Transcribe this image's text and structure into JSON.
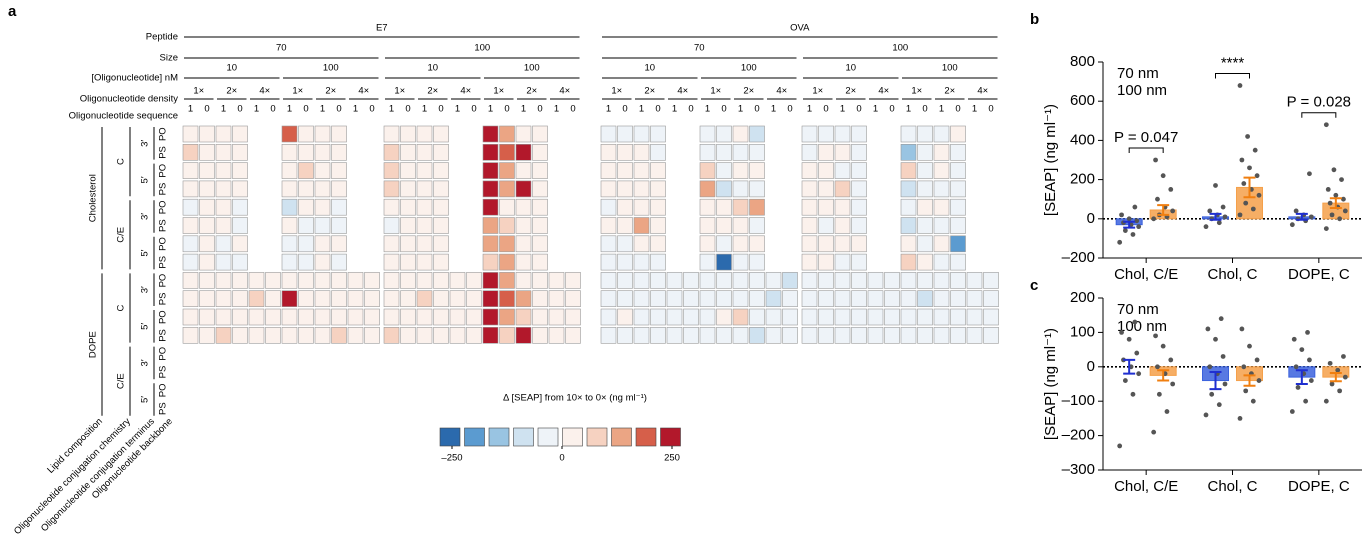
{
  "panel_letters": [
    "a",
    "b",
    "c"
  ],
  "chart_data": [
    {
      "type": "heatmap",
      "column_headers": [
        {
          "name": "Peptide",
          "labels": [
            "E7",
            "OVA"
          ]
        },
        {
          "name": "Size",
          "labels": [
            "70",
            "100"
          ]
        },
        {
          "name": "[Oligonucleotide] nM",
          "labels": [
            "10",
            "100"
          ]
        },
        {
          "name": "Oligonucleotide density",
          "labels": [
            "1×",
            "2×",
            "4×"
          ]
        },
        {
          "name": "Oligonucleotide sequence",
          "labels": [
            "1",
            "0"
          ]
        }
      ],
      "row_headers": [
        {
          "name": "Lipid composition",
          "labels": [
            "Cholesterol",
            "DOPE"
          ]
        },
        {
          "name": "Oligonucleotide conjugation chemistry",
          "labels": [
            "C",
            "C/E"
          ]
        },
        {
          "name": "Oligonucleotide conjugation terminus",
          "labels": [
            "3′",
            "5′"
          ]
        },
        {
          "name": "Oligonucleotide backbone",
          "labels": [
            "PO",
            "PS"
          ]
        }
      ],
      "values": [
        [
          10,
          10,
          10,
          20,
          null,
          null,
          150,
          20,
          10,
          10,
          null,
          null,
          10,
          20,
          40,
          10,
          null,
          null,
          250,
          100,
          40,
          10,
          null,
          null,
          -20,
          -20,
          -20,
          -10,
          null,
          null,
          -30,
          -10,
          20,
          -100,
          null,
          null,
          -10,
          -10,
          -20,
          -10,
          null,
          null,
          -40,
          -10,
          -10,
          10,
          null,
          null
        ],
        [
          60,
          10,
          10,
          20,
          null,
          null,
          30,
          10,
          10,
          10,
          null,
          null,
          60,
          20,
          40,
          10,
          null,
          null,
          250,
          150,
          250,
          30,
          null,
          null,
          10,
          10,
          10,
          -10,
          null,
          null,
          -40,
          -20,
          -10,
          -30,
          null,
          null,
          -10,
          10,
          20,
          -10,
          null,
          null,
          -120,
          -10,
          10,
          -40,
          null,
          null
        ],
        [
          20,
          20,
          30,
          10,
          null,
          null,
          20,
          50,
          10,
          10,
          null,
          null,
          80,
          40,
          10,
          20,
          null,
          null,
          250,
          100,
          20,
          30,
          null,
          null,
          20,
          10,
          10,
          20,
          null,
          null,
          60,
          -20,
          10,
          10,
          null,
          null,
          10,
          20,
          -10,
          -10,
          null,
          null,
          70,
          -10,
          20,
          -40,
          null,
          null
        ],
        [
          20,
          10,
          30,
          10,
          null,
          null,
          10,
          20,
          10,
          10,
          null,
          null,
          60,
          20,
          40,
          30,
          null,
          null,
          200,
          100,
          250,
          10,
          null,
          null,
          40,
          20,
          10,
          10,
          null,
          null,
          120,
          -60,
          -50,
          -30,
          null,
          null,
          40,
          20,
          50,
          -10,
          null,
          null,
          -60,
          -20,
          -20,
          -40,
          null,
          null
        ],
        [
          -10,
          10,
          20,
          -10,
          null,
          null,
          -100,
          10,
          10,
          -30,
          null,
          null,
          10,
          10,
          20,
          10,
          null,
          null,
          250,
          20,
          10,
          20,
          null,
          null,
          -10,
          20,
          10,
          10,
          null,
          null,
          20,
          40,
          60,
          100,
          null,
          null,
          10,
          20,
          20,
          -10,
          null,
          null,
          -20,
          10,
          20,
          -40,
          null,
          null
        ],
        [
          20,
          10,
          30,
          -10,
          null,
          null,
          10,
          -20,
          -10,
          -10,
          null,
          null,
          -20,
          20,
          30,
          10,
          null,
          null,
          100,
          50,
          20,
          20,
          null,
          null,
          10,
          20,
          100,
          10,
          null,
          null,
          10,
          20,
          10,
          -10,
          null,
          null,
          10,
          -10,
          10,
          -10,
          null,
          null,
          -80,
          -20,
          -10,
          -30,
          null,
          null
        ],
        [
          -10,
          10,
          -10,
          40,
          null,
          null,
          -20,
          -10,
          10,
          10,
          null,
          null,
          10,
          20,
          30,
          20,
          null,
          null,
          120,
          100,
          40,
          20,
          null,
          null,
          -10,
          -10,
          20,
          10,
          null,
          null,
          10,
          -10,
          30,
          10,
          null,
          null,
          10,
          10,
          10,
          10,
          null,
          null,
          10,
          -10,
          20,
          -180,
          null,
          null
        ],
        [
          -10,
          10,
          -10,
          -10,
          null,
          null,
          -40,
          -20,
          40,
          -10,
          null,
          null,
          10,
          20,
          20,
          10,
          null,
          null,
          80,
          100,
          20,
          10,
          null,
          null,
          -10,
          -10,
          -10,
          -20,
          null,
          null,
          -20,
          -220,
          -20,
          -10,
          null,
          null,
          10,
          10,
          -10,
          -10,
          null,
          null,
          70,
          10,
          -10,
          -10,
          null,
          null
        ],
        [
          10,
          10,
          20,
          10,
          10,
          10,
          10,
          10,
          20,
          10,
          10,
          10,
          10,
          20,
          30,
          20,
          10,
          10,
          250,
          100,
          40,
          20,
          10,
          10,
          -30,
          -20,
          -20,
          -30,
          -40,
          -30,
          -20,
          -30,
          -20,
          -30,
          -40,
          -60,
          -20,
          -20,
          -30,
          -30,
          -30,
          -30,
          -30,
          -40,
          -30,
          -20,
          -30,
          -30
        ],
        [
          10,
          20,
          20,
          10,
          80,
          20,
          250,
          10,
          20,
          30,
          10,
          10,
          10,
          20,
          60,
          20,
          10,
          10,
          200,
          150,
          100,
          20,
          20,
          20,
          -20,
          -10,
          -10,
          -20,
          -20,
          -30,
          -20,
          -10,
          -20,
          -40,
          -80,
          -40,
          -10,
          -10,
          -10,
          -20,
          -20,
          -20,
          -30,
          -70,
          -20,
          -20,
          -20,
          -30
        ],
        [
          20,
          20,
          20,
          10,
          10,
          10,
          20,
          30,
          20,
          10,
          10,
          20,
          40,
          30,
          30,
          20,
          20,
          20,
          250,
          100,
          60,
          30,
          20,
          20,
          -20,
          30,
          -20,
          -10,
          -10,
          -20,
          -20,
          20,
          60,
          -30,
          -20,
          -30,
          -10,
          -10,
          -20,
          -10,
          -20,
          -20,
          -20,
          -40,
          -20,
          -20,
          -30,
          -30
        ],
        [
          30,
          20,
          90,
          20,
          10,
          10,
          10,
          30,
          20,
          70,
          20,
          10,
          60,
          30,
          30,
          20,
          20,
          20,
          250,
          80,
          250,
          30,
          20,
          20,
          -10,
          -10,
          -10,
          -20,
          -20,
          -30,
          -20,
          -10,
          -30,
          -60,
          -50,
          -20,
          -20,
          -10,
          -10,
          -10,
          -20,
          -20,
          -20,
          -40,
          -20,
          -20,
          -30,
          -30
        ]
      ],
      "colors": [
        "#2b6aad",
        "#5b9bd0",
        "#99c4e2",
        "#cfe2f0",
        "#eef3f8",
        "#fbf1ec",
        "#f6d2c1",
        "#eba584",
        "#d65f4a",
        "#b2182b"
      ],
      "zlim": [
        -250,
        250
      ],
      "colorbar_ticks": [
        {
          "value": -250,
          "label": "–250"
        },
        0,
        250
      ],
      "colorbar_label": "Δ [SEAP] from 10× to 0× (ng ml⁻¹)"
    },
    {
      "type": "bar",
      "categories": [
        "Chol, C/E",
        "Chol, C",
        "DOPE, C"
      ],
      "ylabel": "[SEAP] (ng ml⁻¹)",
      "ylim": [
        -200,
        800
      ],
      "yticks": [
        {
          "value": -200,
          "label": "–200"
        },
        0,
        200,
        400,
        600,
        800
      ],
      "hline": 0,
      "annotations": [
        "P = 0.047",
        "****",
        "P = 0.028"
      ],
      "series": [
        {
          "name": "70 nm",
          "color": "#3b62dd",
          "values": [
            -30,
            10,
            10
          ],
          "errors": [
            15,
            15,
            15
          ],
          "points": [
            [
              -120,
              -80,
              -60,
              -40,
              -30,
              -20,
              -10,
              0,
              20,
              60
            ],
            [
              -40,
              -20,
              0,
              10,
              20,
              40,
              60,
              170
            ],
            [
              -30,
              -10,
              0,
              10,
              20,
              40,
              230
            ]
          ]
        },
        {
          "name": "100 nm",
          "color": "#f5a04a",
          "values": [
            45,
            160,
            80
          ],
          "errors": [
            25,
            50,
            25
          ],
          "points": [
            [
              0,
              10,
              20,
              40,
              60,
              100,
              150,
              220,
              300
            ],
            [
              20,
              50,
              80,
              120,
              150,
              180,
              220,
              260,
              300,
              350,
              420,
              680
            ],
            [
              -50,
              0,
              20,
              40,
              60,
              80,
              100,
              120,
              150,
              200,
              250,
              480
            ]
          ]
        }
      ]
    },
    {
      "type": "bar",
      "categories": [
        "Chol, C/E",
        "Chol, C",
        "DOPE, C"
      ],
      "ylabel": "[SEAP] (ng ml⁻¹)",
      "ylim": [
        -300,
        200
      ],
      "yticks": [
        {
          "value": -300,
          "label": "–300"
        },
        {
          "value": -200,
          "label": "–200"
        },
        {
          "value": -100,
          "label": "–100"
        },
        0,
        100,
        200
      ],
      "hline": 0,
      "series": [
        {
          "name": "70 nm",
          "color": "#3b62dd",
          "values": [
            0,
            -40,
            -30
          ],
          "errors": [
            20,
            25,
            20
          ],
          "points": [
            [
              -230,
              -80,
              -40,
              -20,
              0,
              20,
              40,
              80,
              100,
              130
            ],
            [
              -140,
              -110,
              -80,
              -50,
              -20,
              0,
              30,
              80,
              110,
              140
            ],
            [
              -130,
              -100,
              -60,
              -40,
              -20,
              0,
              20,
              50,
              80,
              100
            ]
          ]
        },
        {
          "name": "100 nm",
          "color": "#f5a04a",
          "values": [
            -25,
            -40,
            -30
          ],
          "errors": [
            15,
            15,
            12
          ],
          "points": [
            [
              -190,
              -130,
              -80,
              -50,
              -20,
              0,
              20,
              60,
              90
            ],
            [
              -150,
              -100,
              -70,
              -40,
              -20,
              0,
              20,
              60,
              110
            ],
            [
              -100,
              -70,
              -50,
              -30,
              -10,
              10,
              30
            ]
          ]
        }
      ]
    }
  ]
}
